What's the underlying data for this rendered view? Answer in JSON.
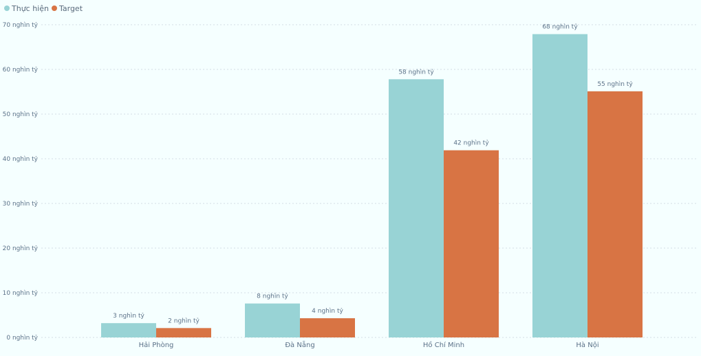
{
  "colors": {
    "series_1": "#98d3d5",
    "series_2": "#d87444",
    "background": "#f5ffff",
    "text": "#5b7188",
    "grid": "#d3dde6"
  },
  "chart_data": {
    "type": "bar",
    "categories": [
      "Hải Phòng",
      "Đà Nẵng",
      "Hồ Chí Minh",
      "Hà Nội"
    ],
    "series": [
      {
        "name": "Thực hiện",
        "values": [
          3.2,
          7.6,
          57.8,
          67.9
        ],
        "labels": [
          "3 nghìn tỷ",
          "8 nghìn tỷ",
          "58 nghìn tỷ",
          "68 nghìn tỷ"
        ]
      },
      {
        "name": "Target",
        "values": [
          2.1,
          4.3,
          41.9,
          55.1
        ],
        "labels": [
          "2 nghìn tỷ",
          "4 nghìn tỷ",
          "42 nghìn tỷ",
          "55 nghìn tỷ"
        ]
      }
    ],
    "y_ticks": [
      0,
      10,
      20,
      30,
      40,
      50,
      60,
      70
    ],
    "y_tick_labels": [
      "0 nghìn tỷ",
      "10 nghìn tỷ",
      "20 nghìn tỷ",
      "30 nghìn tỷ",
      "40 nghìn tỷ",
      "50 nghìn tỷ",
      "60 nghìn tỷ",
      "70 nghìn tỷ"
    ],
    "ylim": [
      0,
      70
    ],
    "legend": "top-left",
    "grid": true
  }
}
